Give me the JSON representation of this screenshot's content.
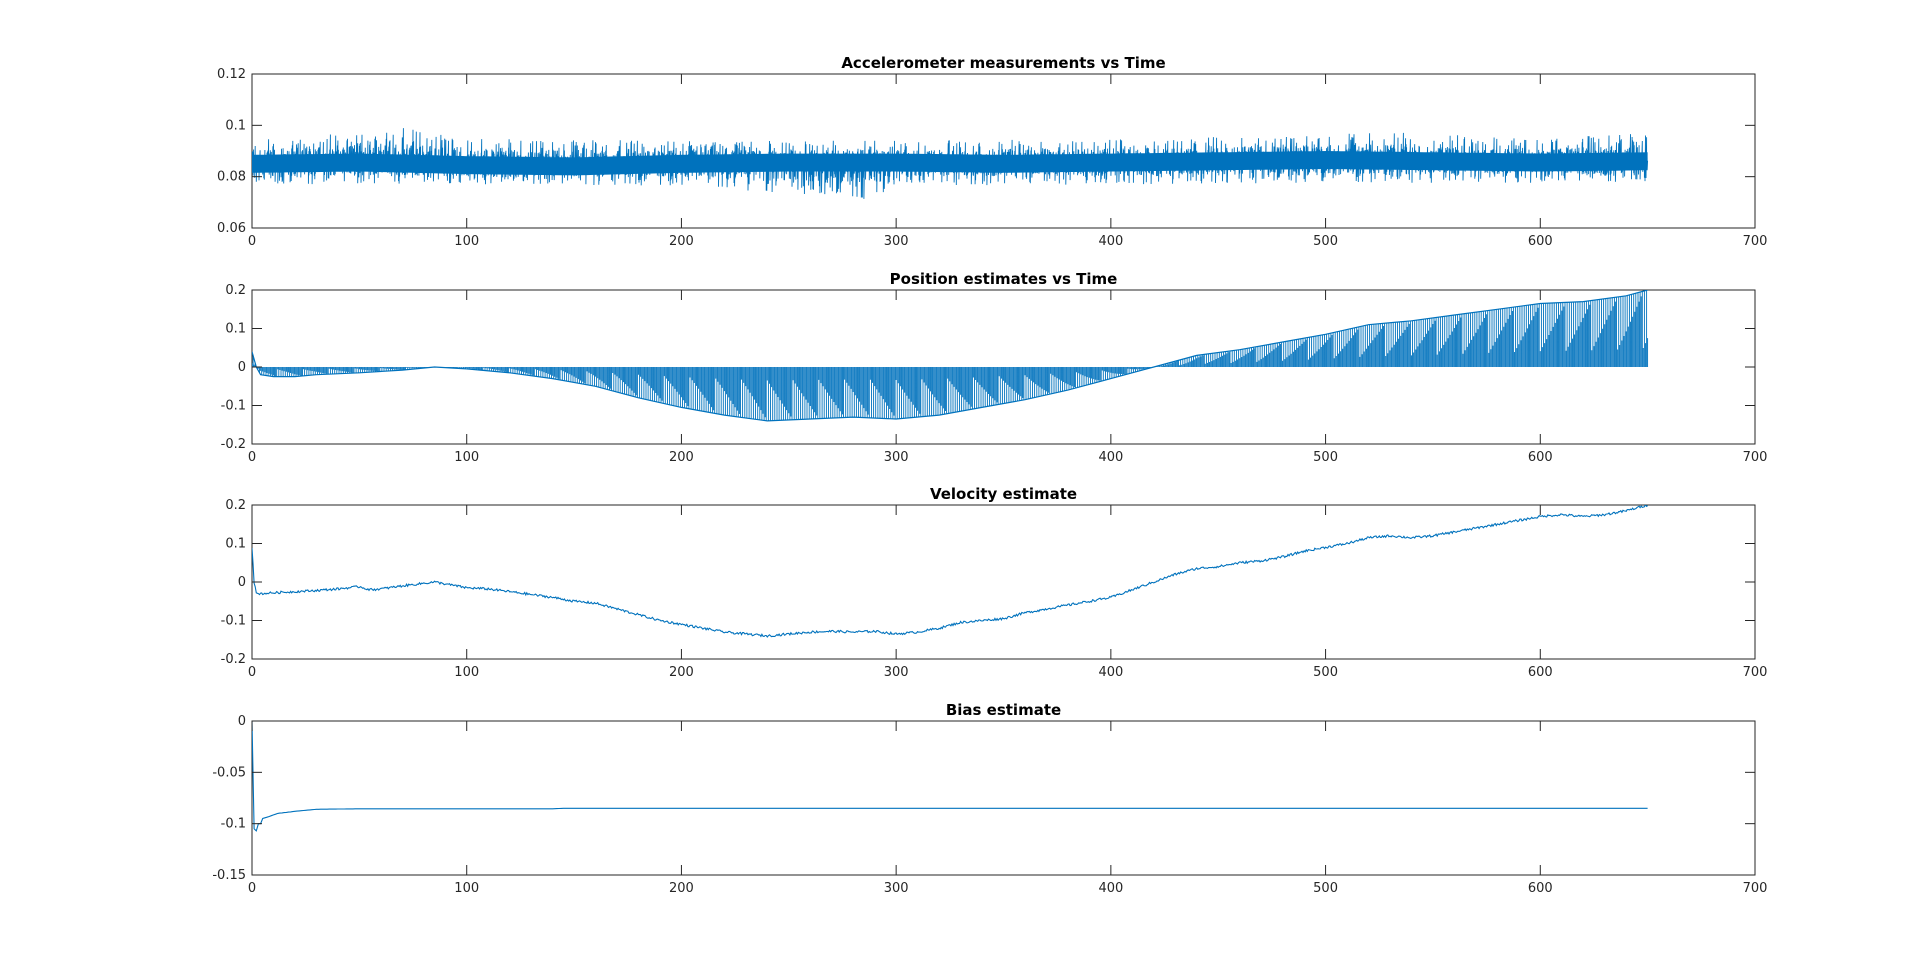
{
  "figure": {
    "background": "#ffffff",
    "line_color": "#0072BD"
  },
  "chart_data": [
    {
      "type": "line",
      "title": "Accelerometer measurements vs Time",
      "xlabel": "",
      "ylabel": "",
      "xlim": [
        0,
        700
      ],
      "ylim": [
        0.06,
        0.12
      ],
      "xticks": [
        0,
        100,
        200,
        300,
        400,
        500,
        600,
        700
      ],
      "yticks": [
        0.06,
        0.08,
        0.1,
        0.12
      ],
      "xtick_labels": [
        "0",
        "100",
        "200",
        "300",
        "400",
        "500",
        "600",
        "700"
      ],
      "ytick_labels": [
        "0.06",
        "0.08",
        "0.1",
        "0.12"
      ],
      "grid": false,
      "style": "noise",
      "series": [
        {
          "x": [
            0,
            650
          ],
          "center": [
            [
              0,
              0.085
            ],
            [
              50,
              0.0855
            ],
            [
              100,
              0.0845
            ],
            [
              150,
              0.084
            ],
            [
              200,
              0.085
            ],
            [
              250,
              0.0855
            ],
            [
              300,
              0.0855
            ],
            [
              350,
              0.085
            ],
            [
              400,
              0.0855
            ],
            [
              450,
              0.086
            ],
            [
              500,
              0.0865
            ],
            [
              550,
              0.086
            ],
            [
              600,
              0.0855
            ],
            [
              650,
              0.086
            ]
          ],
          "min": [
            [
              0,
              0.077
            ],
            [
              100,
              0.077
            ],
            [
              200,
              0.0765
            ],
            [
              290,
              0.071
            ],
            [
              300,
              0.0765
            ],
            [
              400,
              0.077
            ],
            [
              500,
              0.0775
            ],
            [
              600,
              0.0775
            ],
            [
              650,
              0.078
            ]
          ],
          "max": [
            [
              0,
              0.094
            ],
            [
              70,
              0.1
            ],
            [
              100,
              0.095
            ],
            [
              200,
              0.094
            ],
            [
              300,
              0.094
            ],
            [
              400,
              0.095
            ],
            [
              500,
              0.096
            ],
            [
              515,
              0.098
            ],
            [
              600,
              0.095
            ],
            [
              650,
              0.097
            ]
          ]
        }
      ]
    },
    {
      "type": "line",
      "title": "Position estimates vs Time",
      "xlabel": "",
      "ylabel": "",
      "xlim": [
        0,
        700
      ],
      "ylim": [
        -0.2,
        0.2
      ],
      "xticks": [
        0,
        100,
        200,
        300,
        400,
        500,
        600,
        700
      ],
      "yticks": [
        -0.2,
        -0.1,
        0,
        0.1,
        0.2
      ],
      "xtick_labels": [
        "0",
        "100",
        "200",
        "300",
        "400",
        "500",
        "600",
        "700"
      ],
      "ytick_labels": [
        "-0.2",
        "-0.1",
        "0",
        "0.1",
        "0.2"
      ],
      "grid": false,
      "style": "stems",
      "series": [
        {
          "x": [
            0,
            650
          ],
          "values": [
            [
              0,
              0.04
            ],
            [
              2,
              0.0
            ],
            [
              4,
              -0.02
            ],
            [
              10,
              -0.025
            ],
            [
              20,
              -0.025
            ],
            [
              30,
              -0.02
            ],
            [
              50,
              -0.015
            ],
            [
              70,
              -0.008
            ],
            [
              85,
              0.0
            ],
            [
              100,
              -0.005
            ],
            [
              120,
              -0.015
            ],
            [
              140,
              -0.03
            ],
            [
              160,
              -0.05
            ],
            [
              180,
              -0.08
            ],
            [
              200,
              -0.105
            ],
            [
              220,
              -0.125
            ],
            [
              240,
              -0.14
            ],
            [
              260,
              -0.135
            ],
            [
              280,
              -0.13
            ],
            [
              300,
              -0.135
            ],
            [
              320,
              -0.125
            ],
            [
              340,
              -0.105
            ],
            [
              360,
              -0.085
            ],
            [
              380,
              -0.06
            ],
            [
              400,
              -0.03
            ],
            [
              420,
              0.0
            ],
            [
              440,
              0.03
            ],
            [
              460,
              0.045
            ],
            [
              480,
              0.065
            ],
            [
              500,
              0.085
            ],
            [
              520,
              0.11
            ],
            [
              540,
              0.12
            ],
            [
              560,
              0.135
            ],
            [
              580,
              0.15
            ],
            [
              600,
              0.165
            ],
            [
              620,
              0.17
            ],
            [
              640,
              0.185
            ],
            [
              650,
              0.2
            ]
          ]
        }
      ]
    },
    {
      "type": "line",
      "title": "Velocity estimate",
      "xlabel": "",
      "ylabel": "",
      "xlim": [
        0,
        700
      ],
      "ylim": [
        -0.2,
        0.2
      ],
      "xticks": [
        0,
        100,
        200,
        300,
        400,
        500,
        600,
        700
      ],
      "yticks": [
        -0.2,
        -0.1,
        0,
        0.1,
        0.2
      ],
      "xtick_labels": [
        "0",
        "100",
        "200",
        "300",
        "400",
        "500",
        "600",
        "700"
      ],
      "ytick_labels": [
        "-0.2",
        "-0.1",
        "0",
        "0.1",
        "0.2"
      ],
      "grid": false,
      "style": "line",
      "series": [
        {
          "values": [
            [
              0,
              0.09
            ],
            [
              1,
              0.0
            ],
            [
              2,
              -0.03
            ],
            [
              5,
              -0.03
            ],
            [
              10,
              -0.028
            ],
            [
              20,
              -0.025
            ],
            [
              30,
              -0.022
            ],
            [
              40,
              -0.018
            ],
            [
              50,
              -0.012
            ],
            [
              55,
              -0.02
            ],
            [
              60,
              -0.018
            ],
            [
              70,
              -0.01
            ],
            [
              85,
              0.0
            ],
            [
              95,
              -0.01
            ],
            [
              100,
              -0.015
            ],
            [
              110,
              -0.018
            ],
            [
              120,
              -0.025
            ],
            [
              140,
              -0.04
            ],
            [
              150,
              -0.05
            ],
            [
              160,
              -0.055
            ],
            [
              170,
              -0.07
            ],
            [
              180,
              -0.085
            ],
            [
              190,
              -0.1
            ],
            [
              200,
              -0.11
            ],
            [
              210,
              -0.12
            ],
            [
              220,
              -0.13
            ],
            [
              230,
              -0.135
            ],
            [
              240,
              -0.14
            ],
            [
              250,
              -0.135
            ],
            [
              260,
              -0.13
            ],
            [
              270,
              -0.128
            ],
            [
              280,
              -0.13
            ],
            [
              290,
              -0.128
            ],
            [
              300,
              -0.135
            ],
            [
              310,
              -0.13
            ],
            [
              320,
              -0.12
            ],
            [
              330,
              -0.105
            ],
            [
              340,
              -0.1
            ],
            [
              350,
              -0.095
            ],
            [
              360,
              -0.08
            ],
            [
              370,
              -0.07
            ],
            [
              380,
              -0.06
            ],
            [
              390,
              -0.05
            ],
            [
              400,
              -0.04
            ],
            [
              410,
              -0.02
            ],
            [
              420,
              0.0
            ],
            [
              430,
              0.02
            ],
            [
              440,
              0.035
            ],
            [
              450,
              0.04
            ],
            [
              460,
              0.05
            ],
            [
              470,
              0.055
            ],
            [
              480,
              0.065
            ],
            [
              490,
              0.08
            ],
            [
              500,
              0.09
            ],
            [
              510,
              0.1
            ],
            [
              520,
              0.115
            ],
            [
              530,
              0.12
            ],
            [
              540,
              0.115
            ],
            [
              550,
              0.12
            ],
            [
              560,
              0.13
            ],
            [
              570,
              0.14
            ],
            [
              580,
              0.15
            ],
            [
              590,
              0.16
            ],
            [
              600,
              0.17
            ],
            [
              610,
              0.175
            ],
            [
              620,
              0.17
            ],
            [
              630,
              0.175
            ],
            [
              640,
              0.185
            ],
            [
              650,
              0.2
            ]
          ]
        }
      ]
    },
    {
      "type": "line",
      "title": "Bias estimate",
      "xlabel": "",
      "ylabel": "",
      "xlim": [
        0,
        700
      ],
      "ylim": [
        -0.15,
        0
      ],
      "xticks": [
        0,
        100,
        200,
        300,
        400,
        500,
        600,
        700
      ],
      "yticks": [
        -0.15,
        -0.1,
        -0.05,
        0
      ],
      "xtick_labels": [
        "0",
        "100",
        "200",
        "300",
        "400",
        "500",
        "600",
        "700"
      ],
      "ytick_labels": [
        "-0.15",
        "-0.1",
        "-0.05",
        "0"
      ],
      "grid": false,
      "style": "line",
      "series": [
        {
          "values": [
            [
              0,
              0.0
            ],
            [
              0.5,
              -0.1
            ],
            [
              1,
              -0.105
            ],
            [
              2,
              -0.107
            ],
            [
              3,
              -0.1
            ],
            [
              4,
              -0.1
            ],
            [
              5,
              -0.095
            ],
            [
              8,
              -0.093
            ],
            [
              12,
              -0.09
            ],
            [
              20,
              -0.088
            ],
            [
              30,
              -0.086
            ],
            [
              50,
              -0.0855
            ],
            [
              100,
              -0.0855
            ],
            [
              140,
              -0.0855
            ],
            [
              145,
              -0.085
            ],
            [
              300,
              -0.085
            ],
            [
              500,
              -0.085
            ],
            [
              650,
              -0.085
            ]
          ]
        }
      ]
    }
  ]
}
